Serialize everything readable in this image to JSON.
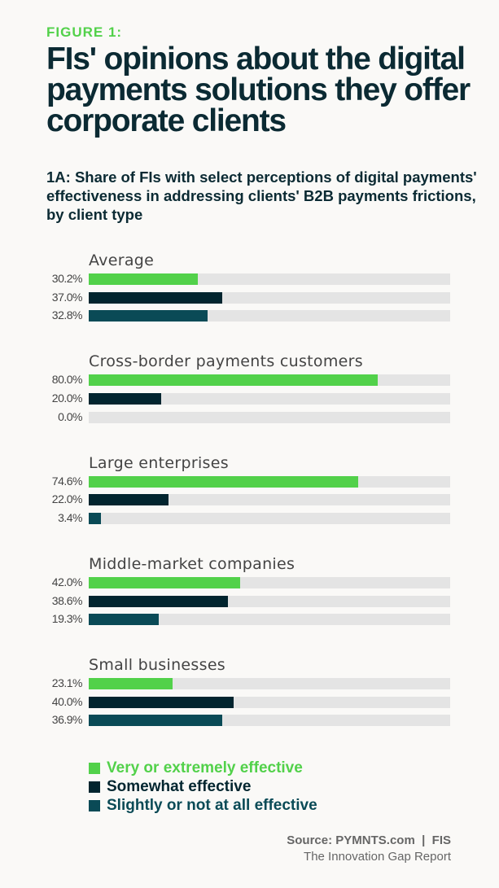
{
  "figure_label": "FIGURE 1:",
  "title": "FIs' opinions about the digital payments solutions they offer corporate clients",
  "subtitle": "1A: Share of FIs with select perceptions of digital payments' effectiveness in addressing clients' B2B payments frictions, by client type",
  "chart_data": {
    "type": "bar",
    "orientation": "horizontal",
    "xlim": [
      0,
      100
    ],
    "unit": "%",
    "categories": [
      "Average",
      "Cross-border payments customers",
      "Large enterprises",
      "Middle-market companies",
      "Small businesses"
    ],
    "series": [
      {
        "name": "Very or extremely effective",
        "color": "#52d14a",
        "values": [
          30.2,
          80.0,
          74.6,
          42.0,
          23.1
        ],
        "labels": [
          "30.2%",
          "80.0%",
          "74.6%",
          "42.0%",
          "23.1%"
        ]
      },
      {
        "name": "Somewhat effective",
        "color": "#02252f",
        "values": [
          37.0,
          20.0,
          22.0,
          38.6,
          40.0
        ],
        "labels": [
          "37.0%",
          "20.0%",
          "22.0%",
          "38.6%",
          "40.0%"
        ]
      },
      {
        "name": "Slightly or not at all effective",
        "color": "#0a4a56",
        "values": [
          32.8,
          0.0,
          3.4,
          19.3,
          36.9
        ],
        "labels": [
          "32.8%",
          "0.0%",
          "3.4%",
          "19.3%",
          "36.9%"
        ]
      }
    ],
    "legend_position": "bottom-left"
  },
  "source": {
    "line1": "Source: PYMNTS.com  |  FIS",
    "line2": "The Innovation Gap Report"
  }
}
